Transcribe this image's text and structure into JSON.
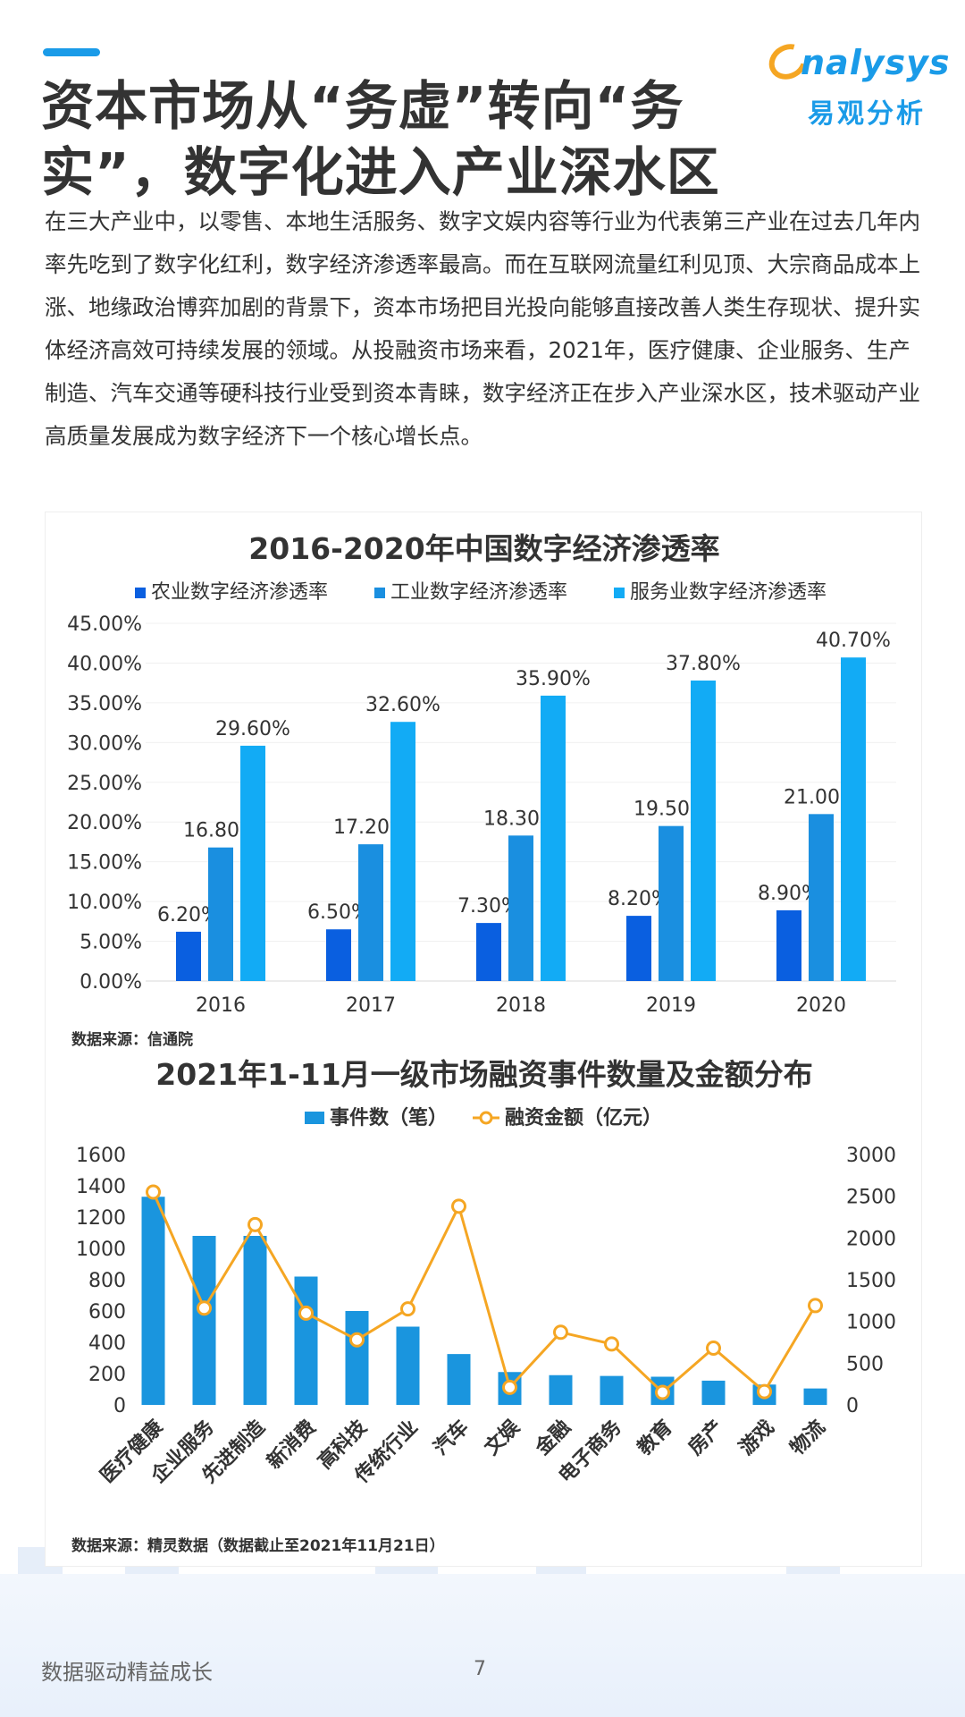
{
  "header": {
    "title_line1": "资本市场从“务虚”转向“务",
    "title_line2": "实”，数字化进入产业深水区"
  },
  "logo": {
    "en": "nalysys",
    "cn": "易观分析"
  },
  "intro_text": "在三大产业中，以零售、本地生活服务、数字文娱内容等行业为代表第三产业在过去几年内率先吃到了数字化红利，数字经济渗透率最高。而在互联网流量红利见顶、大宗商品成本上涨、地缘政治博弈加剧的背景下，资本市场把目光投向能够直接改善人类生存现状、提升实体经济高效可持续发展的领域。从投融资市场来看，2021年，医疗健康、企业服务、生产制造、汽车交通等硬科技行业受到资本青睐，数字经济正在步入产业深水区，技术驱动产业高质量发展成为数字经济下一个核心增长点。",
  "chart_data": [
    {
      "type": "bar",
      "title": "2016-2020年中国数字经济渗透率",
      "categories": [
        "2016",
        "2017",
        "2018",
        "2019",
        "2020"
      ],
      "series": [
        {
          "name": "农业数字经济渗透率",
          "values": [
            6.2,
            6.5,
            7.3,
            8.2,
            8.9
          ],
          "labels": [
            "6.20%",
            "6.50%",
            "7.30%",
            "8.20%",
            "8.90%"
          ],
          "color": "#0a5fe0"
        },
        {
          "name": "工业数字经济渗透率",
          "values": [
            16.8,
            17.2,
            18.3,
            19.5,
            21.0
          ],
          "labels": [
            "16.80%",
            "17.20%",
            "18.30%",
            "19.50%",
            "21.00%"
          ],
          "color": "#1a8fe0"
        },
        {
          "name": "服务业数字经济渗透率",
          "values": [
            29.6,
            32.6,
            35.9,
            37.8,
            40.7
          ],
          "labels": [
            "29.60%",
            "32.60%",
            "35.90%",
            "37.80%",
            "40.70%"
          ],
          "color": "#12abf5"
        }
      ],
      "yticks": [
        "0.00%",
        "5.00%",
        "10.00%",
        "15.00%",
        "20.00%",
        "25.00%",
        "30.00%",
        "35.00%",
        "40.00%",
        "45.00%"
      ],
      "ylim": [
        0,
        45
      ],
      "legend": "top",
      "grid": true,
      "source": "数据来源：信通院"
    },
    {
      "type": "bar",
      "title": "2021年1-11月一级市场融资事件数量及金额分布",
      "categories": [
        "医疗健康",
        "企业服务",
        "先进制造",
        "新消费",
        "高科技",
        "传统行业",
        "汽车",
        "文娱",
        "金融",
        "电子商务",
        "教育",
        "房产",
        "游戏",
        "物流"
      ],
      "series": [
        {
          "name": "事件数（笔）",
          "type": "bar",
          "axis": "left",
          "values": [
            1330,
            1080,
            1080,
            820,
            600,
            500,
            325,
            210,
            190,
            185,
            180,
            155,
            130,
            105
          ],
          "color": "#1a95de"
        },
        {
          "name": "融资金额（亿元）",
          "type": "line",
          "axis": "right",
          "values": [
            2550,
            1160,
            2160,
            1100,
            780,
            1150,
            2380,
            210,
            870,
            730,
            150,
            680,
            160,
            1190
          ],
          "color": "#f5a623"
        }
      ],
      "yticks_left": [
        "0",
        "200",
        "400",
        "600",
        "800",
        "1000",
        "1200",
        "1400",
        "1600"
      ],
      "ylim_left": [
        0,
        1600
      ],
      "yticks_right": [
        "0",
        "500",
        "1000",
        "1500",
        "2000",
        "2500",
        "3000"
      ],
      "ylim_right": [
        0,
        3000
      ],
      "legend": "top",
      "grid": false,
      "source": "数据来源：精灵数据（数据截止至2021年11月21日）"
    }
  ],
  "footer": {
    "slogan": "数据驱动精益成长",
    "page_number": "7"
  }
}
